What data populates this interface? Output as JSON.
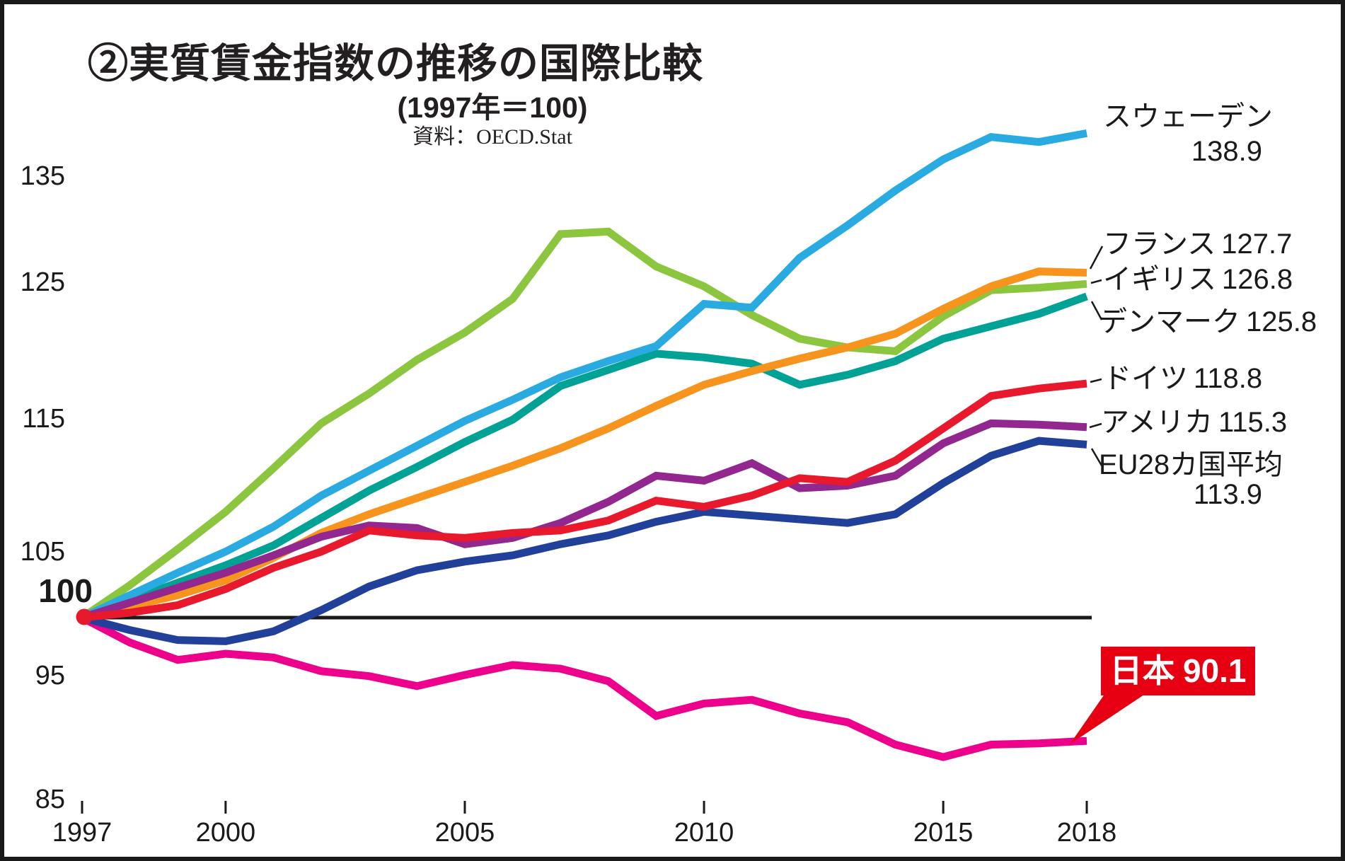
{
  "header": {
    "title": "②実質賃金指数の推移の国際比較",
    "subtitle": "(1997年＝100)",
    "source": "資料：OECD.Stat"
  },
  "chart_data": {
    "type": "line",
    "title": "実質賃金指数の推移の国際比較",
    "subtitle": "1997年＝100",
    "x": [
      1997,
      1998,
      1999,
      2000,
      2001,
      2002,
      2003,
      2004,
      2005,
      2006,
      2007,
      2008,
      2009,
      2010,
      2011,
      2012,
      2013,
      2014,
      2015,
      2016,
      2017,
      2018
    ],
    "x_ticks": [
      1997,
      2000,
      2005,
      2010,
      2015,
      2018
    ],
    "y_ticks": [
      135,
      125,
      115,
      105,
      95,
      85
    ],
    "ylim": [
      84,
      141
    ],
    "grid": false,
    "baseline": {
      "value": 100,
      "label": "100"
    },
    "series": [
      {
        "name": "スウェーデン",
        "label_value": "138.9",
        "color": "#29abe2",
        "values": [
          100,
          101.8,
          103.6,
          105.3,
          107.3,
          109.8,
          111.8,
          113.8,
          115.8,
          117.5,
          119.3,
          120.6,
          121.8,
          125.2,
          124.9,
          128.9,
          131.5,
          134.3,
          136.8,
          138.6,
          138.2,
          138.9
        ]
      },
      {
        "name": "フランス",
        "label_value": "127.7",
        "color": "#f7941d",
        "values": [
          100,
          100.9,
          101.8,
          103.0,
          104.8,
          106.8,
          108.3,
          109.6,
          110.9,
          112.2,
          113.6,
          115.2,
          117.0,
          118.7,
          119.8,
          120.8,
          121.7,
          122.8,
          124.8,
          126.6,
          127.8,
          127.7
        ]
      },
      {
        "name": "イギリス",
        "label_value": "126.8",
        "color": "#8cc63f",
        "values": [
          100,
          102.6,
          105.5,
          108.5,
          112.0,
          115.6,
          118.0,
          120.7,
          122.9,
          125.6,
          130.8,
          131.0,
          128.2,
          126.6,
          124.3,
          122.4,
          121.7,
          121.4,
          124.2,
          126.3,
          126.5,
          126.8
        ]
      },
      {
        "name": "デンマーク",
        "label_value": "125.8",
        "color": "#00a295",
        "values": [
          100,
          101.4,
          102.8,
          104.2,
          105.8,
          108.0,
          110.2,
          112.1,
          114.1,
          115.9,
          118.6,
          119.9,
          121.2,
          120.9,
          120.4,
          118.7,
          119.5,
          120.6,
          122.4,
          123.4,
          124.4,
          125.8
        ]
      },
      {
        "name": "ドイツ",
        "label_value": "118.8",
        "color": "#e8192c",
        "values": [
          100,
          100.4,
          101.0,
          102.3,
          104.0,
          105.3,
          107.0,
          106.6,
          106.4,
          106.8,
          107.0,
          107.8,
          109.4,
          108.9,
          109.8,
          111.2,
          110.9,
          112.6,
          115.2,
          117.8,
          118.4,
          118.8
        ]
      },
      {
        "name": "アメリカ",
        "label_value": "115.3",
        "color": "#92278f",
        "values": [
          100,
          101.2,
          102.4,
          103.6,
          105.0,
          106.5,
          107.4,
          107.2,
          105.9,
          106.4,
          107.6,
          109.3,
          111.4,
          111.0,
          112.4,
          110.4,
          110.6,
          111.4,
          114.0,
          115.6,
          115.5,
          115.3
        ]
      },
      {
        "name": "EU28カ国平均",
        "label_value": "113.9",
        "color": "#21409a",
        "values": [
          100,
          99.0,
          98.2,
          98.1,
          98.9,
          100.6,
          102.5,
          103.8,
          104.5,
          105.0,
          105.9,
          106.6,
          107.7,
          108.5,
          108.2,
          107.9,
          107.6,
          108.3,
          110.8,
          113.0,
          114.2,
          113.9
        ]
      },
      {
        "name": "日本",
        "label_value": "90.1",
        "color": "#ec008c",
        "values": [
          100,
          98.0,
          96.6,
          97.1,
          96.8,
          95.7,
          95.3,
          94.5,
          95.4,
          96.2,
          95.9,
          94.9,
          92.1,
          93.1,
          93.4,
          92.3,
          91.6,
          89.8,
          88.8,
          89.8,
          89.9,
          90.1
        ]
      }
    ],
    "legend_position": "right",
    "japan_callout": {
      "bg": "#e60012",
      "text_color": "#ffffff"
    }
  }
}
